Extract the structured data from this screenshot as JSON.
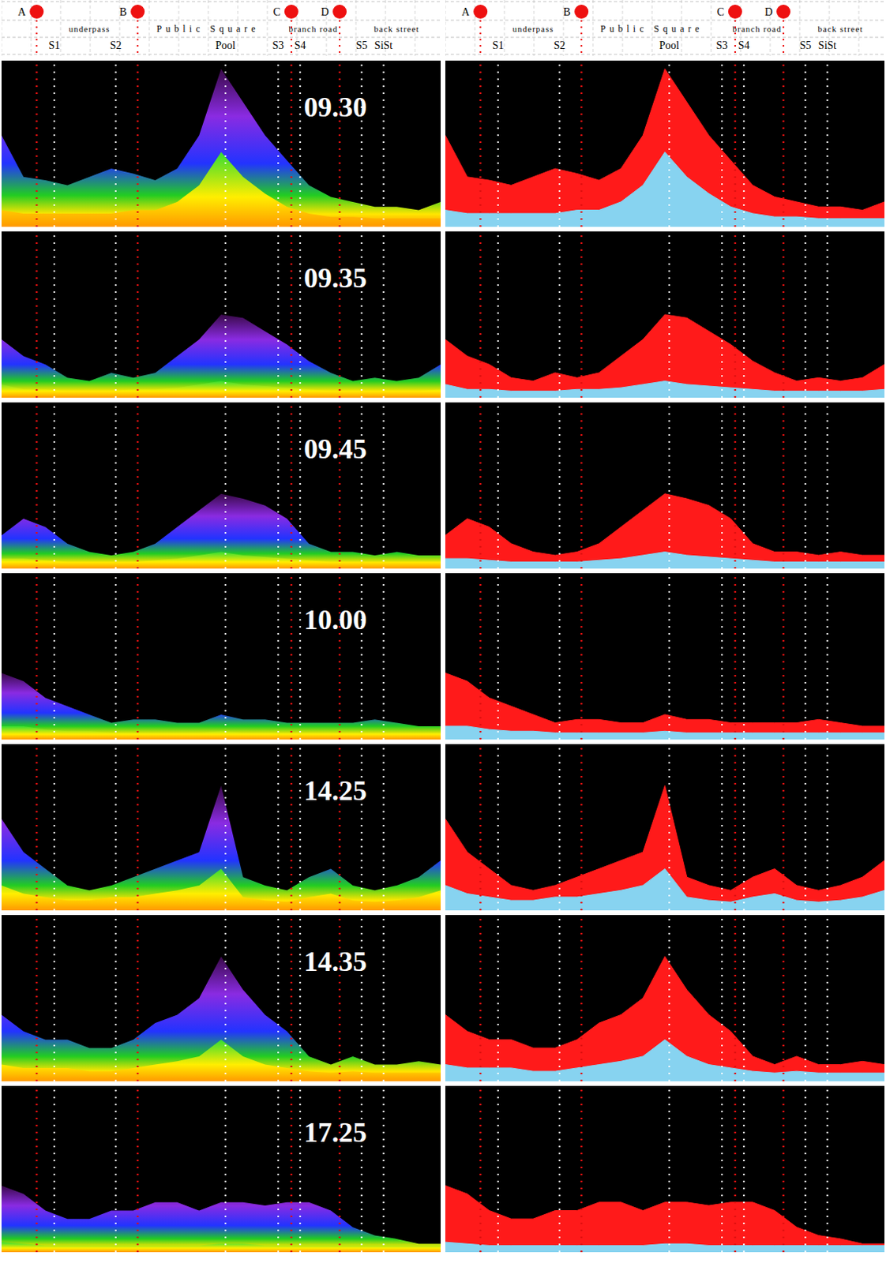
{
  "header": {
    "markers": [
      {
        "label": "A",
        "x": 8
      },
      {
        "label": "B",
        "x": 31
      },
      {
        "label": "C",
        "x": 66
      },
      {
        "label": "D",
        "x": 77
      }
    ],
    "areas": [
      {
        "label": "underpass",
        "x": 20
      },
      {
        "label": "Public Square",
        "x": 47
      },
      {
        "label": "branch road",
        "x": 71
      },
      {
        "label": "back street",
        "x": 90
      }
    ],
    "stations": [
      {
        "label": "S1",
        "x": 12
      },
      {
        "label": "S2",
        "x": 26
      },
      {
        "label": "Pool",
        "x": 51
      },
      {
        "label": "S3",
        "x": 63
      },
      {
        "label": "S4",
        "x": 68
      },
      {
        "label": "S5",
        "x": 82
      },
      {
        "label": "SiSt",
        "x": 87
      }
    ]
  },
  "chart_data": [
    {
      "type": "area",
      "title": "09.30",
      "xlim": [
        0,
        100
      ],
      "ylim": [
        0,
        100
      ],
      "tick_labels": false,
      "x": [
        0,
        5,
        10,
        15,
        20,
        25,
        30,
        35,
        40,
        45,
        50,
        55,
        60,
        65,
        70,
        75,
        80,
        85,
        90,
        95,
        100
      ],
      "series": [
        {
          "color": "#ff1a1a",
          "values": [
            55,
            30,
            28,
            25,
            30,
            35,
            32,
            28,
            35,
            55,
            95,
            75,
            55,
            40,
            25,
            18,
            15,
            12,
            12,
            10,
            15
          ]
        },
        {
          "color": "#87d3f0",
          "values": [
            10,
            8,
            8,
            8,
            8,
            8,
            10,
            10,
            15,
            25,
            45,
            30,
            20,
            12,
            8,
            6,
            6,
            5,
            5,
            5,
            5
          ]
        }
      ]
    },
    {
      "type": "area",
      "title": "09.35",
      "xlim": [
        0,
        100
      ],
      "ylim": [
        0,
        100
      ],
      "tick_labels": false,
      "x": [
        0,
        5,
        10,
        15,
        20,
        25,
        30,
        35,
        40,
        45,
        50,
        55,
        60,
        65,
        70,
        75,
        80,
        85,
        90,
        95,
        100
      ],
      "series": [
        {
          "color": "#ff1a1a",
          "values": [
            35,
            25,
            20,
            12,
            10,
            15,
            12,
            15,
            25,
            35,
            50,
            48,
            40,
            32,
            22,
            15,
            10,
            12,
            10,
            12,
            20
          ]
        },
        {
          "color": "#87d3f0",
          "values": [
            8,
            5,
            5,
            4,
            4,
            4,
            5,
            5,
            6,
            8,
            10,
            8,
            7,
            6,
            5,
            4,
            4,
            4,
            4,
            4,
            5
          ]
        }
      ]
    },
    {
      "type": "area",
      "title": "09.45",
      "xlim": [
        0,
        100
      ],
      "ylim": [
        0,
        100
      ],
      "tick_labels": false,
      "x": [
        0,
        5,
        10,
        15,
        20,
        25,
        30,
        35,
        40,
        45,
        50,
        55,
        60,
        65,
        70,
        75,
        80,
        85,
        90,
        95,
        100
      ],
      "series": [
        {
          "color": "#ff1a1a",
          "values": [
            20,
            30,
            25,
            15,
            10,
            8,
            10,
            15,
            25,
            35,
            45,
            42,
            38,
            30,
            15,
            10,
            10,
            8,
            10,
            8,
            8
          ]
        },
        {
          "color": "#87d3f0",
          "values": [
            6,
            6,
            5,
            4,
            4,
            4,
            4,
            5,
            6,
            8,
            10,
            8,
            7,
            6,
            5,
            4,
            4,
            4,
            4,
            4,
            4
          ]
        }
      ]
    },
    {
      "type": "area",
      "title": "10.00",
      "xlim": [
        0,
        100
      ],
      "ylim": [
        0,
        100
      ],
      "tick_labels": false,
      "x": [
        0,
        5,
        10,
        15,
        20,
        25,
        30,
        35,
        40,
        45,
        50,
        55,
        60,
        65,
        70,
        75,
        80,
        85,
        90,
        95,
        100
      ],
      "series": [
        {
          "color": "#ff1a1a",
          "values": [
            40,
            35,
            25,
            20,
            15,
            10,
            12,
            12,
            10,
            10,
            15,
            12,
            12,
            10,
            10,
            10,
            10,
            12,
            10,
            8,
            8
          ]
        },
        {
          "color": "#87d3f0",
          "values": [
            8,
            8,
            6,
            5,
            5,
            4,
            4,
            4,
            4,
            4,
            5,
            4,
            4,
            4,
            4,
            4,
            4,
            4,
            4,
            4,
            4
          ]
        }
      ]
    },
    {
      "type": "area",
      "title": "14.25",
      "xlim": [
        0,
        100
      ],
      "ylim": [
        0,
        100
      ],
      "tick_labels": false,
      "x": [
        0,
        5,
        10,
        15,
        20,
        25,
        30,
        35,
        40,
        45,
        50,
        55,
        60,
        65,
        70,
        75,
        80,
        85,
        90,
        95,
        100
      ],
      "series": [
        {
          "color": "#ff1a1a",
          "values": [
            55,
            35,
            25,
            15,
            12,
            15,
            20,
            25,
            30,
            35,
            75,
            20,
            15,
            12,
            20,
            25,
            15,
            12,
            15,
            20,
            30
          ]
        },
        {
          "color": "#87d3f0",
          "values": [
            15,
            10,
            8,
            6,
            6,
            8,
            8,
            10,
            12,
            15,
            25,
            8,
            6,
            5,
            8,
            10,
            6,
            5,
            6,
            8,
            12
          ]
        }
      ]
    },
    {
      "type": "area",
      "title": "14.35",
      "xlim": [
        0,
        100
      ],
      "ylim": [
        0,
        100
      ],
      "tick_labels": false,
      "x": [
        0,
        5,
        10,
        15,
        20,
        25,
        30,
        35,
        40,
        45,
        50,
        55,
        60,
        65,
        70,
        75,
        80,
        85,
        90,
        95,
        100
      ],
      "series": [
        {
          "color": "#ff1a1a",
          "values": [
            40,
            30,
            25,
            25,
            20,
            20,
            25,
            35,
            40,
            50,
            75,
            55,
            40,
            30,
            15,
            10,
            15,
            10,
            10,
            12,
            10
          ]
        },
        {
          "color": "#87d3f0",
          "values": [
            10,
            8,
            8,
            8,
            6,
            6,
            8,
            10,
            12,
            15,
            25,
            15,
            10,
            8,
            6,
            5,
            6,
            5,
            5,
            5,
            5
          ]
        }
      ]
    },
    {
      "type": "area",
      "title": "17.25",
      "xlim": [
        0,
        100
      ],
      "ylim": [
        0,
        100
      ],
      "tick_labels": false,
      "x": [
        0,
        5,
        10,
        15,
        20,
        25,
        30,
        35,
        40,
        45,
        50,
        55,
        60,
        65,
        70,
        75,
        80,
        85,
        90,
        95,
        100
      ],
      "series": [
        {
          "color": "#ff1a1a",
          "values": [
            40,
            35,
            25,
            20,
            20,
            25,
            25,
            30,
            30,
            25,
            30,
            30,
            28,
            30,
            30,
            25,
            15,
            10,
            8,
            5,
            5
          ]
        },
        {
          "color": "#87d3f0",
          "values": [
            6,
            5,
            4,
            4,
            4,
            4,
            4,
            4,
            4,
            4,
            5,
            5,
            4,
            4,
            4,
            4,
            4,
            4,
            4,
            4,
            4
          ]
        }
      ]
    }
  ]
}
